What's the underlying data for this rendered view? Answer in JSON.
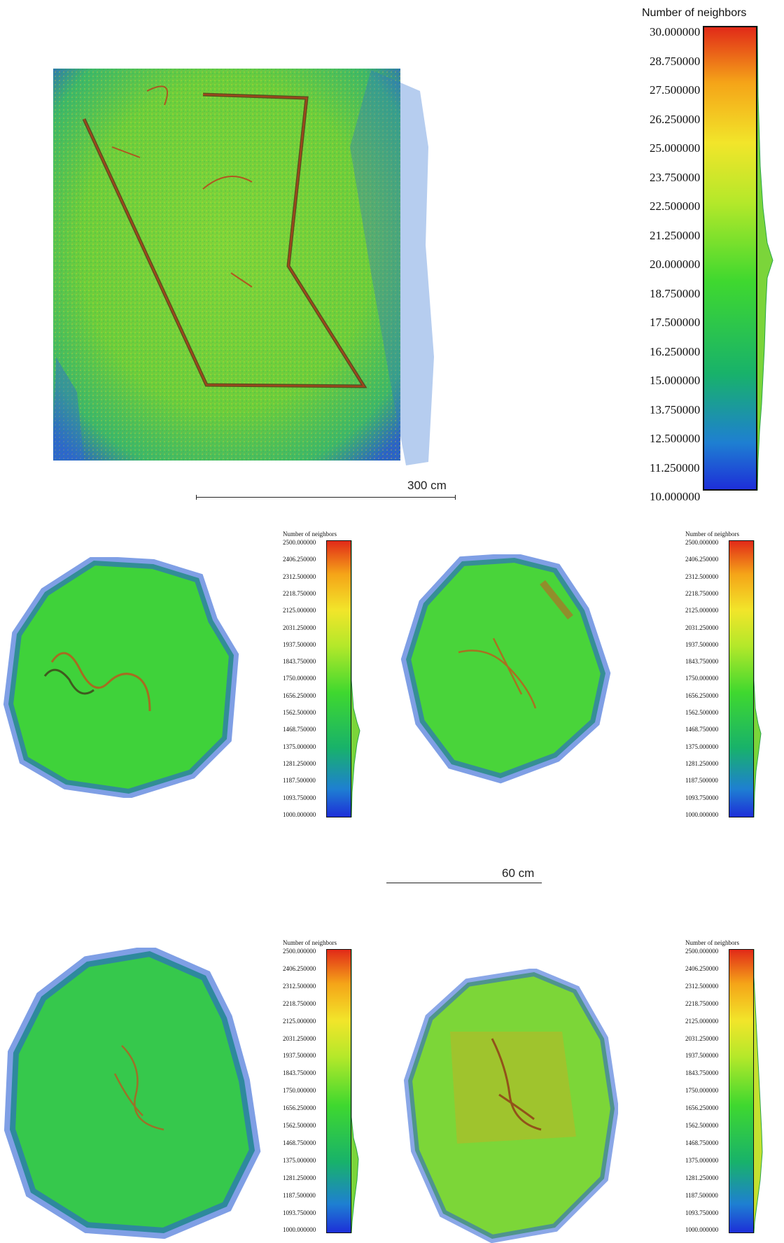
{
  "colormap": {
    "low": "#1d2fd8",
    "mid": "#3fd82f",
    "high": "#e12a18"
  },
  "top_panel": {
    "colorbar_title": "Number of neighbors",
    "ticks": [
      "30.000000",
      "28.750000",
      "27.500000",
      "26.250000",
      "25.000000",
      "23.750000",
      "22.500000",
      "21.250000",
      "20.000000",
      "18.750000",
      "17.500000",
      "16.250000",
      "15.000000",
      "13.750000",
      "12.500000",
      "11.250000",
      "10.000000"
    ],
    "scalebar_label": "300 cm"
  },
  "small_panels": {
    "colorbar_title": "Number of neighbors",
    "ticks": [
      "2500.000000",
      "2406.250000",
      "2312.500000",
      "2218.750000",
      "2125.000000",
      "2031.250000",
      "1937.500000",
      "1843.750000",
      "1750.000000",
      "1656.250000",
      "1562.500000",
      "1468.750000",
      "1375.000000",
      "1281.250000",
      "1187.500000",
      "1093.750000",
      "1000.000000"
    ],
    "scalebar_label": "60 cm"
  }
}
